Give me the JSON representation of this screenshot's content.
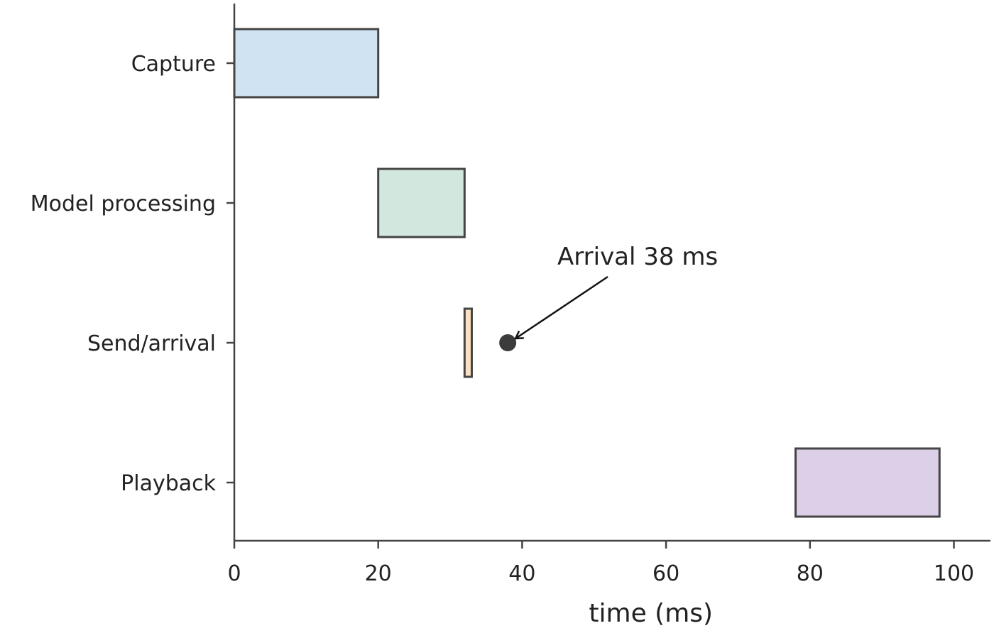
{
  "chart_data": {
    "type": "gantt",
    "title": "",
    "xlabel": "time (ms)",
    "ylabel": "",
    "xlim": [
      0,
      105
    ],
    "xticks": [
      0,
      20,
      40,
      60,
      80,
      100
    ],
    "grid": false,
    "tasks": [
      {
        "name": "Capture",
        "start": 0,
        "end": 20,
        "color": "#cfe3f3"
      },
      {
        "name": "Model processing",
        "start": 20,
        "end": 32,
        "color": "#d2e8de"
      },
      {
        "name": "Send/arrival",
        "start": 32,
        "end": 33,
        "color": "#fbe0c4"
      },
      {
        "name": "Playback",
        "start": 78,
        "end": 98,
        "color": "#dccfe8"
      }
    ],
    "markers": [
      {
        "row": "Send/arrival",
        "x": 38,
        "color": "#3c3c3c"
      }
    ],
    "annotations": [
      {
        "text": "Arrival 38 ms",
        "points_to_x": 38,
        "row": "Send/arrival"
      }
    ],
    "edge_color": "#444444"
  }
}
